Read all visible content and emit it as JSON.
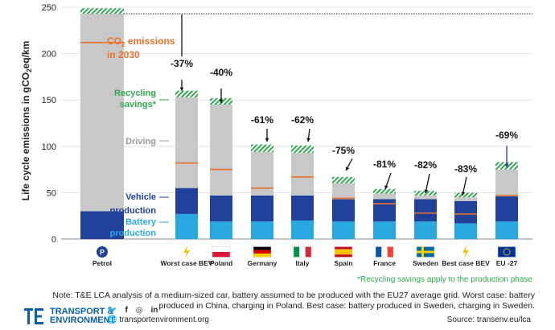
{
  "chart_data": {
    "type": "bar",
    "stacked": true,
    "ylabel": "Life cycle emissions in gCO2eq/km",
    "ylim": [
      0,
      250
    ],
    "yticks": [
      0,
      50,
      100,
      150,
      200,
      250
    ],
    "reference_line": {
      "value": 243,
      "style": "dotted"
    },
    "categories": [
      "Petrol",
      "Worst case BEV",
      "Poland",
      "Germany",
      "Italy",
      "Spain",
      "France",
      "Sweden",
      "Best case BEV",
      "EU -27"
    ],
    "series": [
      {
        "name": "Battery production",
        "color": "#29a8e0",
        "values": [
          0,
          27,
          19,
          19,
          20,
          19,
          19,
          19,
          17,
          19
        ]
      },
      {
        "name": "Vehicle production",
        "color": "#21409a",
        "values": [
          30,
          28,
          28,
          28,
          27,
          24,
          24,
          24,
          24,
          27
        ]
      },
      {
        "name": "Driving",
        "color": "#c8c8c8",
        "values": [
          213,
          98,
          98,
          47,
          46,
          17,
          6,
          4,
          4,
          29
        ]
      },
      {
        "name": "Recycling savings",
        "color": "#2fa84f",
        "values": [
          6,
          7,
          7,
          8,
          8,
          7,
          5,
          5,
          5,
          8
        ]
      }
    ],
    "co2_2030_marker": [
      212,
      82,
      75,
      55,
      67,
      44,
      38,
      28,
      27,
      47
    ],
    "reductions": [
      "",
      "-37%",
      "-40%",
      "-61%",
      "-62%",
      "-75%",
      "-81%",
      "-82%",
      "-83%",
      "-69%"
    ],
    "annotations": {
      "co2_prefix": "CO",
      "co2_sub": "2",
      "co2_suffix": " emissions",
      "co2_line2": "in 2030",
      "recycling_line1": "Recycling",
      "recycling_line2": "savings*",
      "driving": "Driving",
      "vehicle_line1": "Vehicle",
      "vehicle_line2": "production",
      "battery_line1": "Battery",
      "battery_line2": "production"
    }
  },
  "notes": {
    "recycling": "*Recycling savings apply to the production phase",
    "main": "Note: T&E LCA analysis of a medium-sized car, battery assumed to be produced with the EU27 average grid. Worst case: battery produced in China, charging in Poland. Best case: battery produced in Sweden, charging in Sweden.",
    "source": "Source: transenv.eu/lca"
  },
  "footer": {
    "brand_line1": "TRANSPORT &",
    "brand_line2": "ENVIRONMENT",
    "website": "transportenvironment.org",
    "social_icons": [
      "twitter-icon",
      "facebook-icon",
      "instagram-icon",
      "linkedin-icon"
    ]
  },
  "colors": {
    "battery": "#29a8e0",
    "vehicle": "#21409a",
    "driving": "#c8c8c8",
    "recycling": "#2fa84f",
    "co2_marker": "#e8702a",
    "brand": "#0a5fa8"
  },
  "icon_names": [
    "petrol-pump-icon",
    "lightning-icon",
    "flag-poland-icon",
    "flag-germany-icon",
    "flag-italy-icon",
    "flag-spain-icon",
    "flag-france-icon",
    "flag-sweden-icon",
    "lightning-icon",
    "flag-eu-icon"
  ]
}
